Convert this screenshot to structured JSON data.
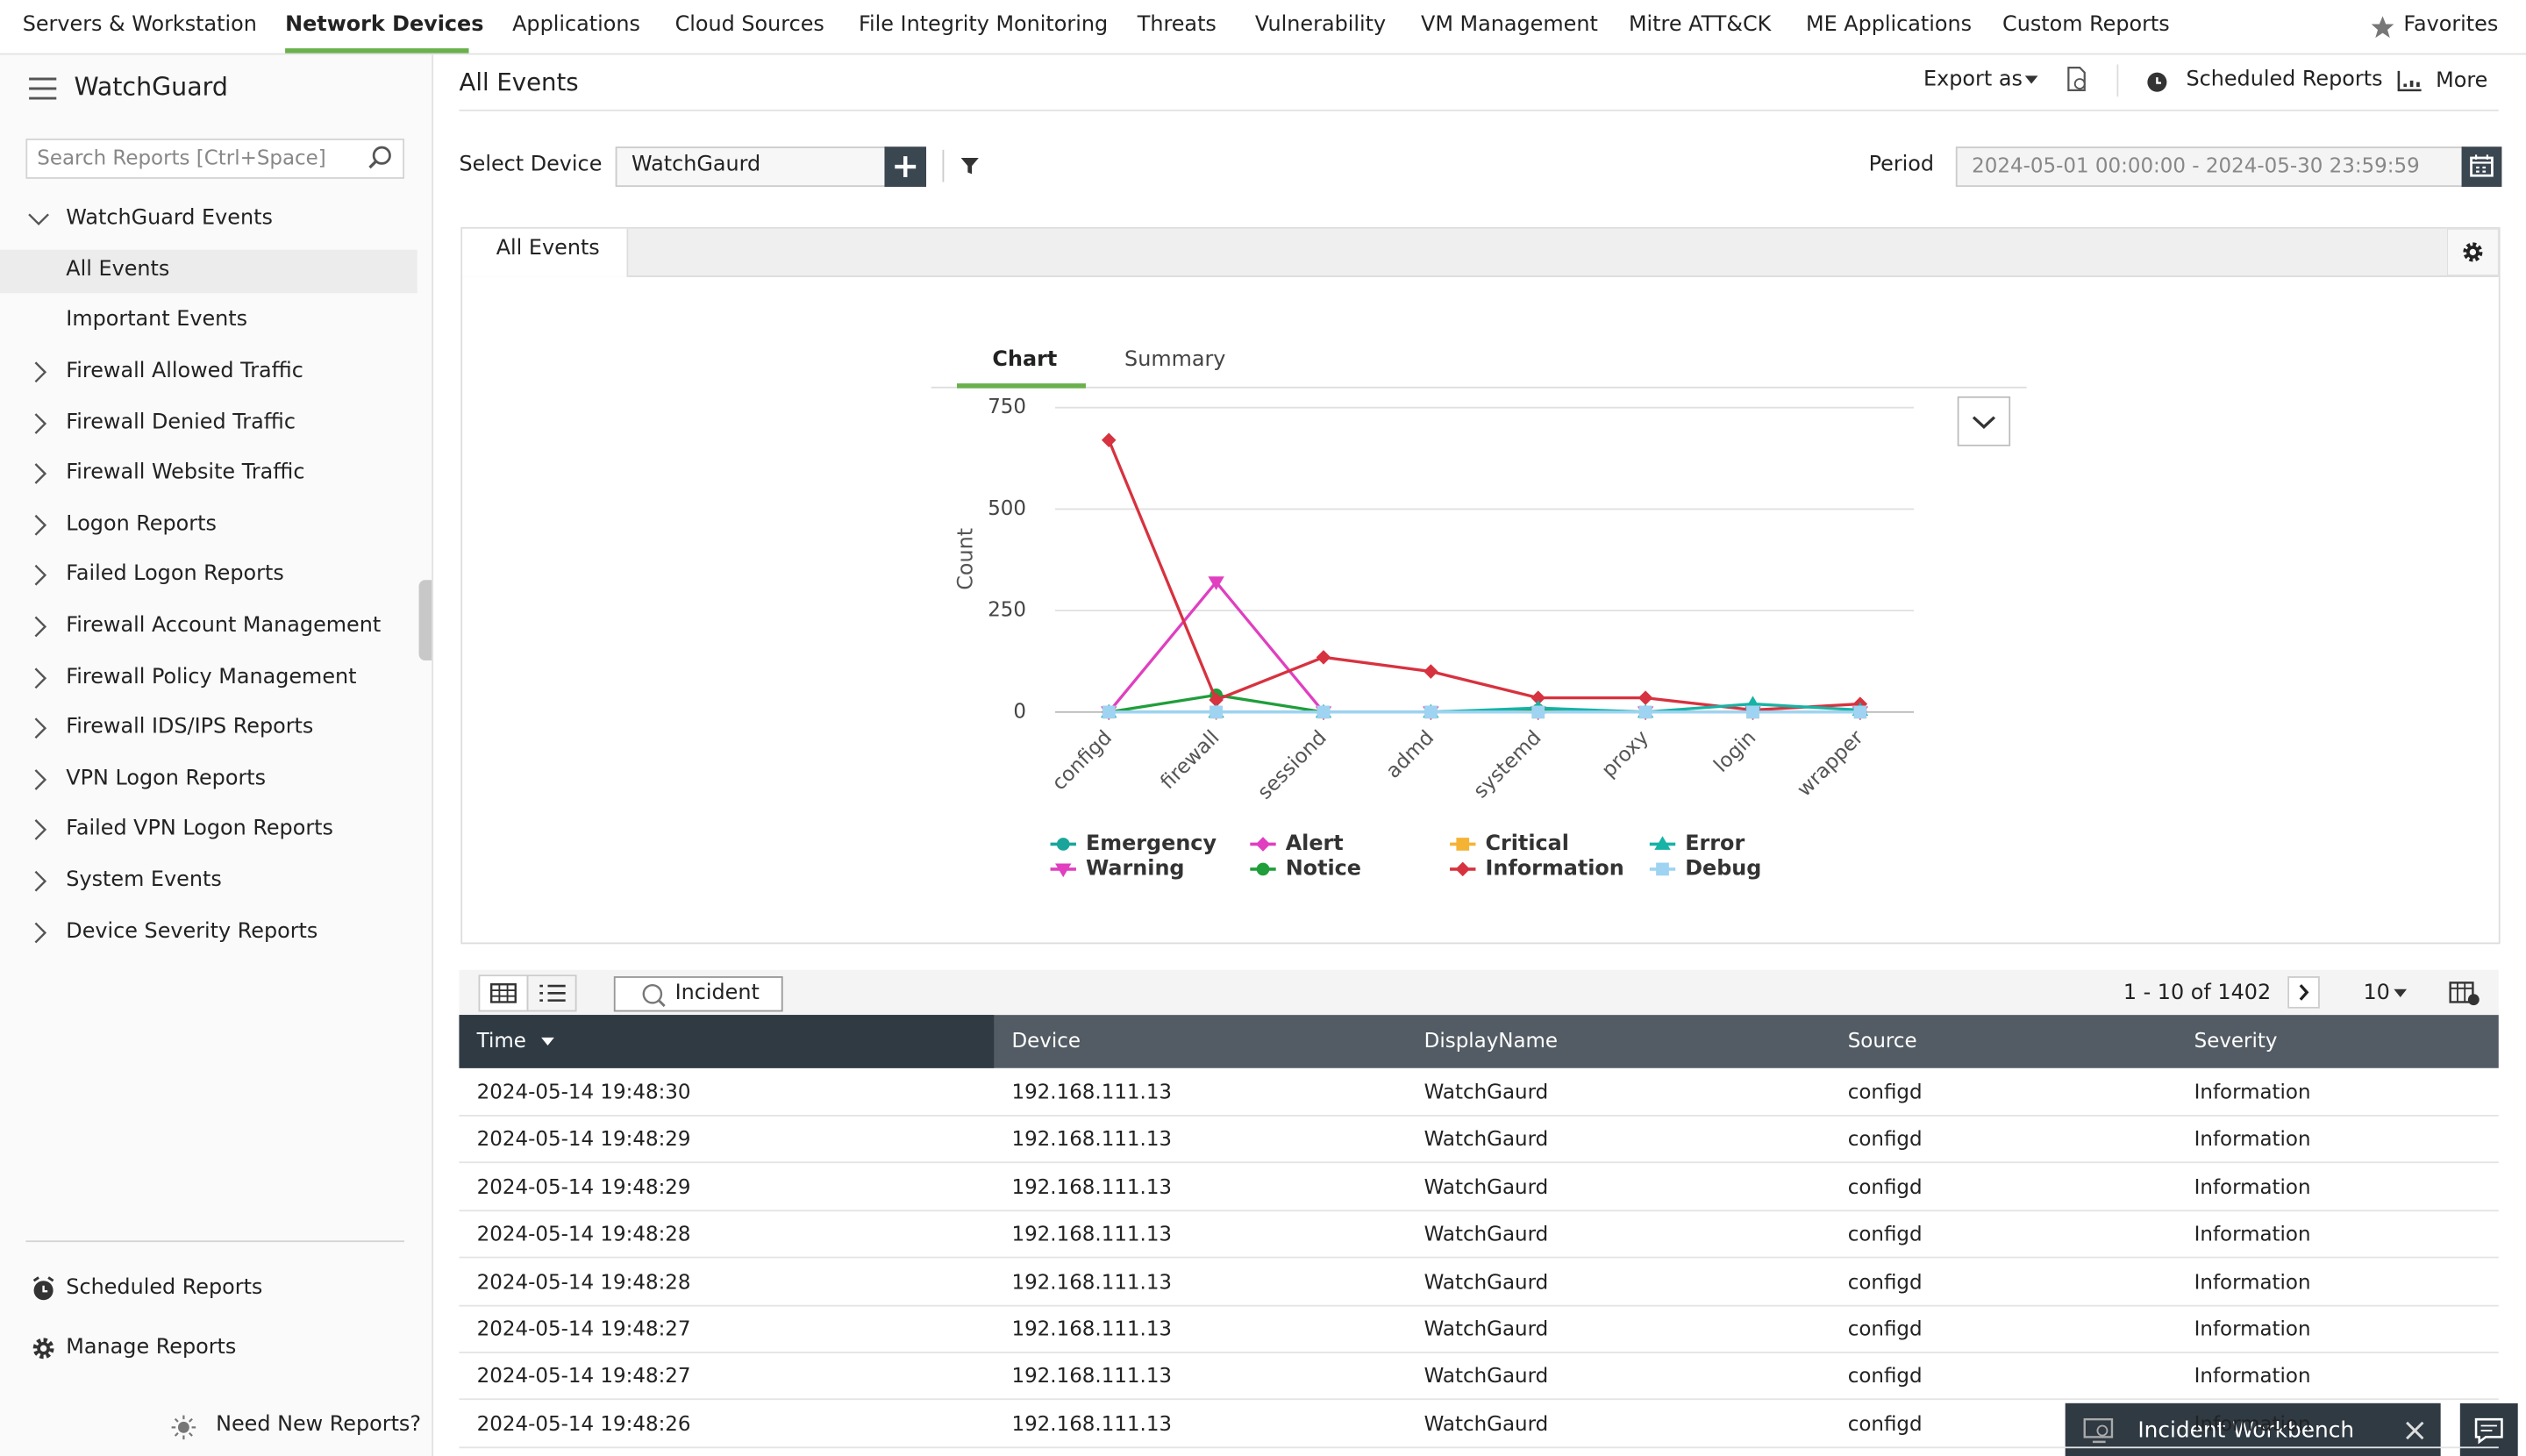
{
  "top_nav": {
    "items": [
      "Servers & Workstation",
      "Network Devices",
      "Applications",
      "Cloud Sources",
      "File Integrity Monitoring",
      "Threats",
      "Vulnerability",
      "VM Management",
      "Mitre ATT&CK",
      "ME Applications",
      "Custom Reports"
    ],
    "favorites": "Favorites"
  },
  "sidebar": {
    "brand": "WatchGuard",
    "search_placeholder": "Search Reports [Ctrl+Space]",
    "group": "WatchGuard Events",
    "group_items": [
      "All Events",
      "Important Events"
    ],
    "reports": [
      "Firewall Allowed Traffic",
      "Firewall Denied Traffic",
      "Firewall Website Traffic",
      "Logon Reports",
      "Failed Logon Reports",
      "Firewall Account Management",
      "Firewall Policy Management",
      "Firewall IDS/IPS Reports",
      "VPN Logon Reports",
      "Failed VPN Logon Reports",
      "System Events",
      "Device Severity Reports"
    ],
    "footer": [
      "Scheduled Reports",
      "Manage Reports"
    ],
    "need_new": "Need New Reports?"
  },
  "header": {
    "title": "All Events",
    "export": "Export as",
    "scheduled": "Scheduled Reports",
    "more": "More"
  },
  "filters": {
    "device_label": "Select Device",
    "device": "WatchGaurd",
    "period_label": "Period",
    "period": "2024-05-01 00:00:00 - 2024-05-30 23:59:59"
  },
  "panel_tab": "All Events",
  "view_tabs": [
    "Chart",
    "Summary"
  ],
  "chart_data": {
    "type": "line",
    "y_label": "Count",
    "categories": [
      "configd",
      "firewall",
      "sessiond",
      "admd",
      "systemd",
      "proxy",
      "login",
      "wrapper"
    ],
    "ylim": [
      0,
      750
    ],
    "yticks": [
      0,
      250,
      500,
      750
    ],
    "grid": true,
    "series": [
      {
        "name": "Emergency",
        "color": "#1aa59b",
        "marker": "circle",
        "values": [
          0,
          0,
          0,
          0,
          0,
          0,
          0,
          0
        ]
      },
      {
        "name": "Warning",
        "color": "#e03fc0",
        "marker": "triangle-down",
        "values": [
          0,
          320,
          0,
          0,
          0,
          0,
          0,
          0
        ]
      },
      {
        "name": "Alert",
        "color": "#e03fc0",
        "marker": "diamond",
        "values": [
          0,
          0,
          0,
          0,
          0,
          0,
          0,
          0
        ]
      },
      {
        "name": "Notice",
        "color": "#1f9e3a",
        "marker": "circle",
        "values": [
          0,
          42,
          0,
          0,
          5,
          0,
          0,
          0
        ]
      },
      {
        "name": "Critical",
        "color": "#f5b335",
        "marker": "square",
        "values": [
          0,
          0,
          0,
          0,
          0,
          0,
          0,
          0
        ]
      },
      {
        "name": "Information",
        "color": "#d7323f",
        "marker": "diamond",
        "values": [
          670,
          30,
          135,
          100,
          35,
          35,
          5,
          20
        ]
      },
      {
        "name": "Error",
        "color": "#17b3a6",
        "marker": "triangle",
        "values": [
          0,
          0,
          0,
          0,
          10,
          0,
          20,
          5
        ]
      },
      {
        "name": "Debug",
        "color": "#9fd3f2",
        "marker": "square",
        "values": [
          0,
          0,
          0,
          0,
          0,
          0,
          0,
          0
        ]
      }
    ]
  },
  "table": {
    "incident": "Incident",
    "pagination": "1 - 10 of 1402",
    "page_size": "10",
    "columns": [
      "Time",
      "Device",
      "DisplayName",
      "Source",
      "Severity"
    ],
    "rows": [
      [
        "2024-05-14 19:48:30",
        "192.168.111.13",
        "WatchGaurd",
        "configd",
        "Information"
      ],
      [
        "2024-05-14 19:48:29",
        "192.168.111.13",
        "WatchGaurd",
        "configd",
        "Information"
      ],
      [
        "2024-05-14 19:48:29",
        "192.168.111.13",
        "WatchGaurd",
        "configd",
        "Information"
      ],
      [
        "2024-05-14 19:48:28",
        "192.168.111.13",
        "WatchGaurd",
        "configd",
        "Information"
      ],
      [
        "2024-05-14 19:48:28",
        "192.168.111.13",
        "WatchGaurd",
        "configd",
        "Information"
      ],
      [
        "2024-05-14 19:48:27",
        "192.168.111.13",
        "WatchGaurd",
        "configd",
        "Information"
      ],
      [
        "2024-05-14 19:48:27",
        "192.168.111.13",
        "WatchGaurd",
        "configd",
        "Information"
      ],
      [
        "2024-05-14 19:48:26",
        "192.168.111.13",
        "WatchGaurd",
        "configd",
        "Information"
      ]
    ]
  },
  "workbench": "Incident Workbench"
}
